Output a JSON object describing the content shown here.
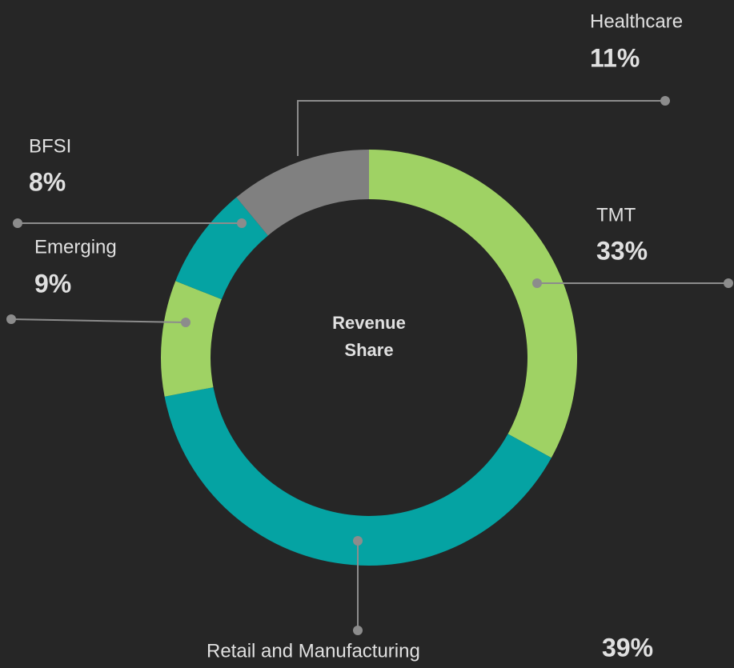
{
  "chart_data": {
    "type": "pie",
    "donut": true,
    "center_label": "Revenue Share",
    "categories": [
      "TMT",
      "Retail and Manufacturing",
      "Emerging",
      "BFSI",
      "Healthcare"
    ],
    "values": [
      33,
      39,
      9,
      8,
      11
    ],
    "value_labels": [
      "33%",
      "39%",
      "9%",
      "8%",
      "11%"
    ],
    "colors": [
      "#9fd264",
      "#05a3a3",
      "#9fd264",
      "#05a3a3",
      "#808080"
    ]
  }
}
